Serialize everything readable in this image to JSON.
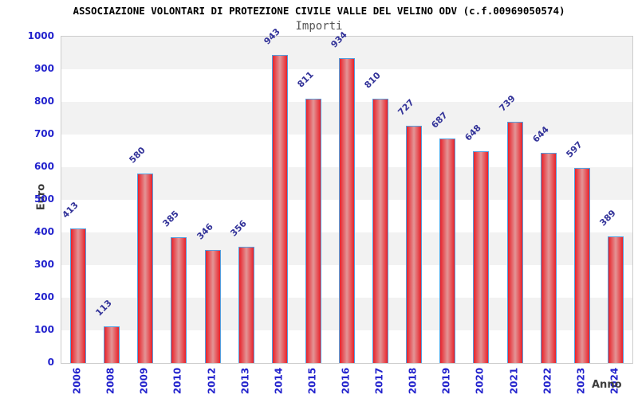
{
  "chart_data": {
    "type": "bar",
    "title": "ASSOCIAZIONE VOLONTARI DI PROTEZIONE CIVILE VALLE DEL VELINO ODV (c.f.00969050574)",
    "subtitle": "Importi",
    "xlabel": "Anno",
    "ylabel": "Euro",
    "categories": [
      "2006",
      "2008",
      "2009",
      "2010",
      "2012",
      "2013",
      "2014",
      "2015",
      "2016",
      "2017",
      "2018",
      "2019",
      "2020",
      "2021",
      "2022",
      "2023",
      "2024"
    ],
    "values": [
      413,
      113,
      580,
      385,
      346,
      356,
      943,
      811,
      934,
      810,
      727,
      687,
      648,
      739,
      644,
      597,
      389
    ],
    "ylim": [
      0,
      1000
    ],
    "ytick_step": 100,
    "grid": "alternating-horizontal-bands",
    "legend": "none",
    "colors": {
      "bar_edge": "#e8222a",
      "bar_center": "#e39596",
      "bar_border": "#54a0e0",
      "tick_label": "#2323cd",
      "value_label": "#333399",
      "band": "#f2f2f2",
      "plot_border": "#cccccc",
      "axis_title": "#3d3d3d",
      "title": "#000000",
      "subtitle": "#555555"
    }
  }
}
